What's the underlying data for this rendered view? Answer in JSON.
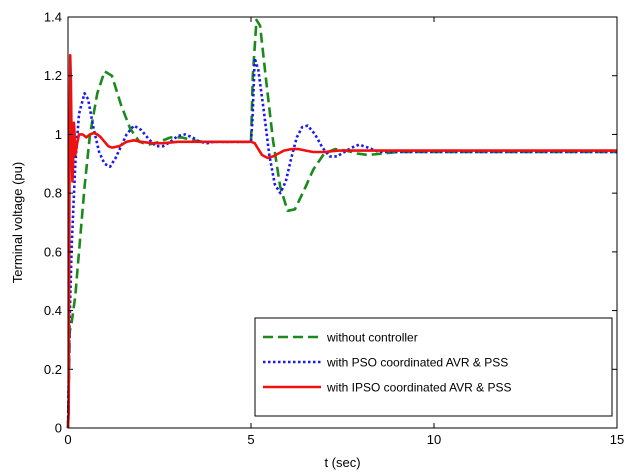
{
  "chart_data": {
    "type": "line",
    "title": "",
    "xlabel": "t (sec)",
    "ylabel": "Terminal voltage (pu)",
    "xlim": [
      0,
      15
    ],
    "ylim": [
      0,
      1.4
    ],
    "xticks": [
      0,
      5,
      10,
      15
    ],
    "yticks": [
      0,
      0.2,
      0.4,
      0.6,
      0.8,
      1,
      1.2,
      1.4
    ],
    "xtick_labels": [
      "0",
      "5",
      "10",
      "15"
    ],
    "ytick_labels": [
      "0",
      "0.2",
      "0.4",
      "0.6",
      "0.8",
      "1",
      "1.2",
      "1.4"
    ],
    "grid": false,
    "legend_position": "bottom-right",
    "series": [
      {
        "name": "without controller",
        "color": "#1a8a1a",
        "style": "dashed",
        "x": [
          0,
          0.05,
          0.1,
          0.2,
          0.3,
          0.45,
          0.6,
          0.8,
          1.0,
          1.2,
          1.45,
          1.7,
          1.95,
          2.2,
          2.5,
          2.8,
          3.1,
          3.4,
          3.7,
          4.0,
          4.3,
          4.6,
          4.9,
          5.0,
          5.05,
          5.15,
          5.25,
          5.4,
          5.6,
          5.8,
          6.0,
          6.2,
          6.45,
          6.7,
          7.0,
          7.3,
          7.6,
          7.9,
          8.2,
          8.6,
          9.0,
          9.5,
          10.0,
          11.0,
          12.0,
          13.0,
          14.0,
          15.0
        ],
        "y": [
          0,
          0.33,
          0.36,
          0.45,
          0.6,
          0.82,
          1.0,
          1.14,
          1.215,
          1.2,
          1.1,
          1.02,
          0.975,
          0.965,
          0.975,
          0.99,
          0.99,
          0.98,
          0.975,
          0.975,
          0.975,
          0.975,
          0.975,
          0.975,
          1.2,
          1.39,
          1.37,
          1.2,
          0.98,
          0.82,
          0.74,
          0.745,
          0.81,
          0.88,
          0.935,
          0.95,
          0.945,
          0.935,
          0.93,
          0.935,
          0.94,
          0.94,
          0.94,
          0.94,
          0.94,
          0.94,
          0.94,
          0.94
        ]
      },
      {
        "name": "with PSO coordinated AVR & PSS",
        "color": "#1a1aee",
        "style": "dotted",
        "x": [
          0,
          0.04,
          0.1,
          0.2,
          0.3,
          0.45,
          0.55,
          0.7,
          0.85,
          1.0,
          1.15,
          1.3,
          1.45,
          1.6,
          1.8,
          2.0,
          2.2,
          2.4,
          2.6,
          2.8,
          3.0,
          3.2,
          3.4,
          3.6,
          3.8,
          4.0,
          4.3,
          4.6,
          4.9,
          5.0,
          5.04,
          5.1,
          5.2,
          5.35,
          5.5,
          5.65,
          5.8,
          5.95,
          6.1,
          6.25,
          6.4,
          6.55,
          6.75,
          6.95,
          7.15,
          7.35,
          7.55,
          7.75,
          7.95,
          8.2,
          8.5,
          9.0,
          10.0,
          11.0,
          12.0,
          13.0,
          14.0,
          15.0
        ],
        "y": [
          0,
          0.35,
          0.62,
          0.9,
          1.07,
          1.14,
          1.12,
          1.02,
          0.94,
          0.9,
          0.89,
          0.92,
          0.96,
          1.0,
          1.03,
          1.015,
          0.985,
          0.96,
          0.96,
          0.975,
          0.995,
          1.0,
          0.99,
          0.975,
          0.97,
          0.975,
          0.975,
          0.975,
          0.975,
          0.975,
          1.05,
          1.26,
          1.22,
          1.08,
          0.93,
          0.83,
          0.8,
          0.84,
          0.92,
          0.99,
          1.025,
          1.03,
          1.0,
          0.955,
          0.925,
          0.925,
          0.94,
          0.955,
          0.965,
          0.955,
          0.94,
          0.94,
          0.94,
          0.94,
          0.94,
          0.94,
          0.94,
          0.94
        ]
      },
      {
        "name": "with IPSO coordinated AVR & PSS",
        "color": "#ee1111",
        "style": "solid",
        "x": [
          0,
          0.02,
          0.04,
          0.06,
          0.08,
          0.1,
          0.12,
          0.14,
          0.16,
          0.18,
          0.2,
          0.25,
          0.3,
          0.4,
          0.5,
          0.6,
          0.7,
          0.8,
          0.9,
          1.0,
          1.1,
          1.2,
          1.4,
          1.6,
          1.8,
          2.0,
          2.3,
          2.6,
          3.0,
          3.5,
          4.0,
          4.5,
          5.0,
          5.1,
          5.2,
          5.3,
          5.45,
          5.6,
          5.75,
          5.9,
          6.1,
          6.3,
          6.5,
          6.7,
          7.0,
          7.4,
          7.8,
          8.2,
          8.7,
          9.2,
          10.0,
          11.0,
          12.0,
          13.0,
          14.0,
          15.0
        ],
        "y": [
          0,
          0.05,
          0.9,
          1.27,
          1.18,
          0.95,
          0.84,
          0.9,
          1.04,
          1.0,
          0.93,
          0.97,
          1.0,
          1.0,
          0.99,
          1.0,
          1.005,
          1.0,
          0.99,
          0.975,
          0.96,
          0.955,
          0.96,
          0.975,
          0.98,
          0.975,
          0.97,
          0.97,
          0.975,
          0.975,
          0.975,
          0.975,
          0.975,
          0.97,
          0.95,
          0.93,
          0.92,
          0.925,
          0.935,
          0.945,
          0.95,
          0.95,
          0.945,
          0.94,
          0.94,
          0.945,
          0.945,
          0.945,
          0.945,
          0.945,
          0.945,
          0.945,
          0.945,
          0.945,
          0.945,
          0.945
        ]
      }
    ]
  }
}
